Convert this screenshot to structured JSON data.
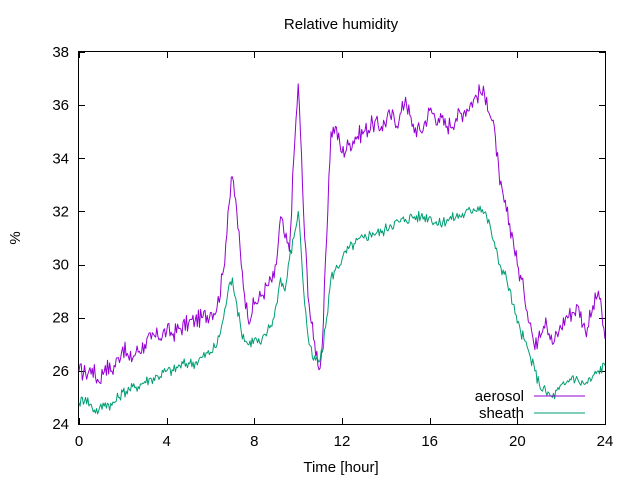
{
  "chart_data": {
    "type": "line",
    "title": "Relative humidity",
    "xlabel": "Time [hour]",
    "ylabel": "%",
    "xlim": [
      0,
      24
    ],
    "ylim": [
      24,
      38
    ],
    "xticks": [
      0,
      4,
      8,
      12,
      16,
      20,
      24
    ],
    "yticks": [
      24,
      26,
      28,
      30,
      32,
      34,
      36,
      38
    ],
    "grid": false,
    "legend_position": "bottom-right",
    "series": [
      {
        "name": "aerosol",
        "color": "#9400d3",
        "x": [
          0,
          0.3,
          0.6,
          0.9,
          1.2,
          1.5,
          1.8,
          2.0,
          2.3,
          2.6,
          3.0,
          3.3,
          3.6,
          4.0,
          4.3,
          4.6,
          5.0,
          5.3,
          5.6,
          6.0,
          6.3,
          6.6,
          6.8,
          7.0,
          7.2,
          7.4,
          7.7,
          8.0,
          8.3,
          8.6,
          8.9,
          9.0,
          9.2,
          9.4,
          9.6,
          9.8,
          10.0,
          10.1,
          10.3,
          10.5,
          10.7,
          11.0,
          11.1,
          11.3,
          11.5,
          11.7,
          12.0,
          12.3,
          12.6,
          13.0,
          13.4,
          13.8,
          14.2,
          14.6,
          14.9,
          15.2,
          15.6,
          16.0,
          16.4,
          16.8,
          17.2,
          17.6,
          18.0,
          18.3,
          18.6,
          18.8,
          19.0,
          19.2,
          19.5,
          19.8,
          20.0,
          20.3,
          20.6,
          20.8,
          21.0,
          21.3,
          21.6,
          21.9,
          22.2,
          22.5,
          22.8,
          23.1,
          23.4,
          23.7,
          24.0
        ],
        "values": [
          26.0,
          25.9,
          26.1,
          25.6,
          26.2,
          26.0,
          26.5,
          26.9,
          26.4,
          26.7,
          27.0,
          27.2,
          27.3,
          27.5,
          27.4,
          27.6,
          27.8,
          27.9,
          28.0,
          28.2,
          28.4,
          29.8,
          32.0,
          33.3,
          32.0,
          30.0,
          28.0,
          28.5,
          28.8,
          29.2,
          29.5,
          30.0,
          31.8,
          31.0,
          30.5,
          34.0,
          36.8,
          35.0,
          31.0,
          28.5,
          27.2,
          26.1,
          27.0,
          31.0,
          35.0,
          35.2,
          34.2,
          34.5,
          34.8,
          35.0,
          35.3,
          35.2,
          35.6,
          35.4,
          36.3,
          35.2,
          35.0,
          35.8,
          35.5,
          35.2,
          35.5,
          35.8,
          36.2,
          36.5,
          36.3,
          35.5,
          34.8,
          33.0,
          32.0,
          31.0,
          30.0,
          29.0,
          27.8,
          26.8,
          27.5,
          28.0,
          27.0,
          27.5,
          28.0,
          28.2,
          28.4,
          27.5,
          28.2,
          29.0,
          27.2
        ]
      },
      {
        "name": "sheath",
        "color": "#009e73",
        "x": [
          0,
          0.3,
          0.6,
          0.9,
          1.2,
          1.5,
          1.8,
          2.0,
          2.3,
          2.6,
          3.0,
          3.3,
          3.6,
          4.0,
          4.3,
          4.6,
          5.0,
          5.3,
          5.6,
          6.0,
          6.3,
          6.6,
          6.8,
          7.0,
          7.2,
          7.4,
          7.7,
          8.0,
          8.3,
          8.6,
          8.9,
          9.0,
          9.2,
          9.4,
          9.6,
          9.8,
          10.0,
          10.1,
          10.3,
          10.5,
          10.7,
          11.0,
          11.1,
          11.3,
          11.5,
          11.7,
          12.0,
          12.3,
          12.6,
          13.0,
          13.4,
          13.8,
          14.2,
          14.6,
          14.9,
          15.2,
          15.6,
          16.0,
          16.4,
          16.8,
          17.2,
          17.6,
          18.0,
          18.3,
          18.6,
          18.8,
          19.0,
          19.2,
          19.5,
          19.8,
          20.0,
          20.3,
          20.6,
          20.8,
          21.0,
          21.3,
          21.6,
          21.9,
          22.2,
          22.5,
          22.8,
          23.1,
          23.4,
          23.7,
          24.0
        ],
        "values": [
          24.8,
          25.0,
          24.6,
          24.5,
          24.8,
          24.7,
          25.0,
          25.2,
          25.3,
          25.4,
          25.6,
          25.7,
          25.8,
          26.0,
          26.0,
          26.2,
          26.3,
          26.3,
          26.5,
          26.7,
          27.0,
          28.0,
          29.0,
          29.5,
          28.5,
          27.5,
          27.0,
          27.2,
          27.0,
          27.5,
          28.0,
          28.5,
          29.5,
          29.0,
          30.2,
          31.0,
          32.0,
          31.0,
          28.5,
          27.0,
          26.4,
          26.4,
          26.7,
          28.0,
          29.5,
          29.8,
          30.2,
          30.6,
          30.8,
          31.0,
          31.2,
          31.2,
          31.5,
          31.6,
          31.7,
          31.8,
          31.8,
          31.8,
          31.5,
          31.7,
          31.8,
          31.9,
          32.1,
          32.2,
          31.8,
          31.3,
          30.6,
          30.0,
          29.5,
          28.5,
          27.8,
          27.2,
          26.5,
          26.0,
          25.5,
          25.2,
          25.0,
          25.3,
          25.5,
          25.8,
          25.6,
          25.5,
          25.7,
          26.0,
          26.2
        ]
      }
    ]
  }
}
